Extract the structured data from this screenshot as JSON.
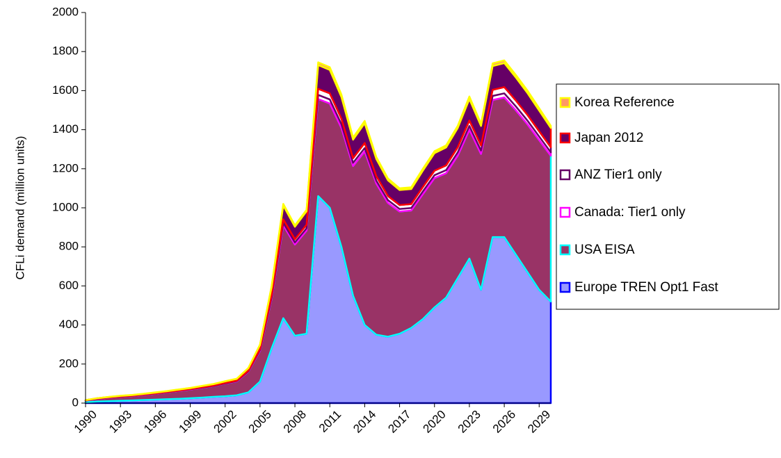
{
  "chart_data": {
    "type": "stacked-area",
    "y_label": "CFLi demand (million units)",
    "x": [
      1990,
      1991,
      1992,
      1993,
      1994,
      1995,
      1996,
      1997,
      1998,
      1999,
      2000,
      2001,
      2002,
      2003,
      2004,
      2005,
      2006,
      2007,
      2008,
      2009,
      2010,
      2011,
      2012,
      2013,
      2014,
      2015,
      2016,
      2017,
      2018,
      2019,
      2020,
      2021,
      2022,
      2023,
      2024,
      2025,
      2026,
      2027,
      2028,
      2029,
      2030
    ],
    "xlim": [
      1990,
      2030
    ],
    "xticks": [
      1990,
      1993,
      1996,
      1999,
      2002,
      2005,
      2008,
      2011,
      2014,
      2017,
      2020,
      2023,
      2026,
      2029
    ],
    "ylim": [
      0,
      2000
    ],
    "yticks": [
      0,
      200,
      400,
      600,
      800,
      1000,
      1200,
      1400,
      1600,
      1800,
      2000
    ],
    "grid": false,
    "legend": "right",
    "series": [
      {
        "name": "Europe TREN Opt1 Fast",
        "color": "#9999ff",
        "edge": "#0000ff",
        "values": [
          5,
          8,
          10,
          12,
          14,
          16,
          18,
          20,
          22,
          25,
          28,
          32,
          35,
          40,
          55,
          110,
          280,
          435,
          345,
          355,
          1060,
          1000,
          800,
          550,
          400,
          350,
          340,
          355,
          385,
          430,
          490,
          540,
          640,
          740,
          580,
          850,
          850,
          760,
          670,
          580,
          520
        ]
      },
      {
        "name": "USA EISA",
        "color": "#993366",
        "edge": "#00ffff",
        "values": [
          7,
          13,
          17,
          20,
          22,
          26,
          30,
          35,
          40,
          45,
          50,
          55,
          65,
          71,
          106,
          158,
          255,
          476,
          467,
          528,
          497,
          534,
          609,
          664,
          889,
          774,
          685,
          626,
          601,
          640,
          662,
          637,
          627,
          660,
          696,
          702,
          715,
          739,
          757,
          767,
          747
        ]
      },
      {
        "name": "Canada: Tier1 only",
        "color": "#ffffff",
        "edge": "#ff00ff",
        "values": [
          1,
          1,
          1,
          1,
          1,
          1,
          1,
          1,
          1,
          1,
          1,
          1,
          1,
          2,
          2,
          4,
          7,
          12,
          11,
          12,
          21,
          21,
          19,
          16,
          17,
          15,
          14,
          13,
          13,
          14,
          15,
          16,
          17,
          19,
          17,
          21,
          21,
          20,
          19,
          18,
          17
        ]
      },
      {
        "name": "ANZ Tier1 only",
        "color": "#ffffff",
        "edge": "#660066",
        "values": [
          1,
          1,
          1,
          1,
          1,
          1,
          1,
          1,
          1,
          1,
          2,
          2,
          2,
          2,
          3,
          5,
          11,
          18,
          16,
          18,
          31,
          31,
          28,
          24,
          26,
          23,
          21,
          20,
          20,
          22,
          23,
          24,
          26,
          28,
          26,
          31,
          32,
          30,
          29,
          27,
          26
        ]
      },
      {
        "name": "Japan 2012",
        "color": "#660066",
        "edge": "#ff0000",
        "values": [
          1,
          2,
          2,
          3,
          3,
          3,
          4,
          4,
          5,
          5,
          6,
          7,
          8,
          9,
          13,
          21,
          42,
          71,
          64,
          69,
          122,
          120,
          111,
          95,
          101,
          88,
          81,
          77,
          77,
          84,
          90,
          92,
          99,
          110,
          100,
          122,
          123,
          118,
          112,
          106,
          99
        ]
      },
      {
        "name": "Korea Reference",
        "color": "#ff9966",
        "edge": "#ffff00",
        "values": [
          0,
          0,
          1,
          1,
          1,
          1,
          1,
          1,
          1,
          1,
          1,
          1,
          1,
          1,
          1,
          2,
          5,
          8,
          7,
          8,
          14,
          14,
          13,
          11,
          12,
          10,
          9,
          9,
          9,
          10,
          10,
          11,
          11,
          13,
          11,
          14,
          14,
          13,
          13,
          12,
          11
        ]
      }
    ]
  }
}
